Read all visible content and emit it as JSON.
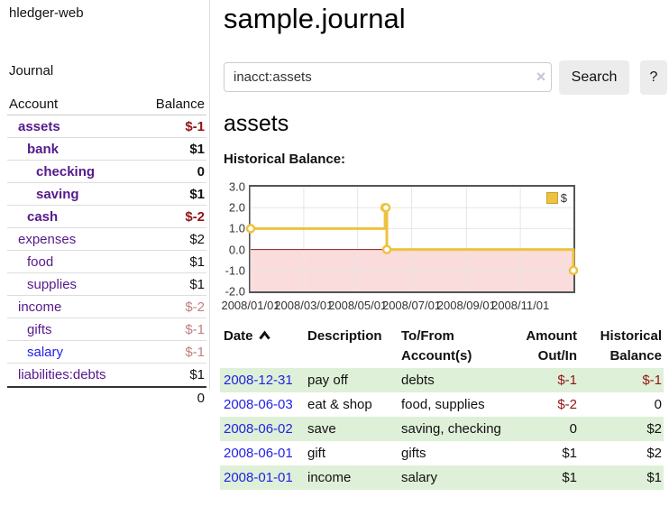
{
  "app": {
    "brand": "hledger-web"
  },
  "colors": {
    "accent_purple": "#551a8b",
    "link_blue": "#2222e6",
    "negative_strong": "#941414",
    "negative_soft": "#c47e7e",
    "row_stripe_green": "#dff0d8",
    "chart_gold": "#edc240",
    "chart_gold_border": "#c9a22e",
    "chart_negative_fill": "#fbdcdc",
    "chart_zero_line": "#8b1a1a",
    "chart_grid": "#e6e6e6"
  },
  "sidebar": {
    "journal_link": "Journal",
    "accounts_table": {
      "headers": {
        "account": "Account",
        "balance": "Balance"
      },
      "rows": [
        {
          "account": "assets",
          "balance": "$-1",
          "level": 1,
          "bold": true,
          "negative": "strong"
        },
        {
          "account": "bank",
          "balance": "$1",
          "level": 2,
          "bold": true,
          "negative": "none"
        },
        {
          "account": "checking",
          "balance": "0",
          "level": 3,
          "bold": true,
          "negative": "none"
        },
        {
          "account": "saving",
          "balance": "$1",
          "level": 3,
          "bold": true,
          "negative": "none"
        },
        {
          "account": "cash",
          "balance": "$-2",
          "level": 2,
          "bold": true,
          "negative": "strong"
        },
        {
          "account": "expenses",
          "balance": "$2",
          "level": 1,
          "bold": false,
          "negative": "none"
        },
        {
          "account": "food",
          "balance": "$1",
          "level": 2,
          "bold": false,
          "negative": "none"
        },
        {
          "account": "supplies",
          "balance": "$1",
          "level": 2,
          "bold": false,
          "negative": "none"
        },
        {
          "account": "income",
          "balance": "$-2",
          "level": 1,
          "bold": false,
          "negative": "soft"
        },
        {
          "account": "gifts",
          "balance": "$-1",
          "level": 2,
          "bold": false,
          "negative": "soft"
        },
        {
          "account": "salary",
          "balance": "$-1",
          "level": 2,
          "bold": false,
          "negative": "soft",
          "link_color": "blue"
        },
        {
          "account": "liabilities:debts",
          "balance": "$1",
          "level": 1,
          "bold": false,
          "negative": "none"
        }
      ],
      "total": "0"
    }
  },
  "header": {
    "title": "sample.journal"
  },
  "search": {
    "value": "inacct:assets",
    "clear_icon": "×",
    "button": "Search",
    "help_button": "?"
  },
  "account_page": {
    "title": "assets",
    "chart_label": "Historical Balance:"
  },
  "chart_data": {
    "type": "line",
    "title": "Historical Balance:",
    "step": true,
    "series": [
      {
        "name": "$",
        "points": [
          [
            "2008-01-01",
            1
          ],
          [
            "2008-06-01",
            2
          ],
          [
            "2008-06-02",
            2
          ],
          [
            "2008-06-03",
            0
          ],
          [
            "2008-12-31",
            -1
          ]
        ]
      }
    ],
    "xlim": [
      "2008-01-01",
      "2008-12-31"
    ],
    "ylim": [
      -2,
      3
    ],
    "yticks": [
      "3.0",
      "2.0",
      "1.0",
      "0.0",
      "-1.0",
      "-2.0"
    ],
    "xticks": [
      "2008/01/01",
      "2008/03/01",
      "2008/05/01",
      "2008/07/01",
      "2008/09/01",
      "2008/11/01"
    ],
    "grid": true,
    "legend_position": "top-right",
    "negative_region_shaded": true
  },
  "register": {
    "headers": {
      "date": "Date",
      "description": "Description",
      "accounts": "To/From Account(s)",
      "amount": "Amount Out/In",
      "balance": "Historical Balance"
    },
    "rows": [
      {
        "date": "2008-12-31",
        "description": "pay off",
        "accounts": "debts",
        "amount": "$-1",
        "balance": "$-1"
      },
      {
        "date": "2008-06-03",
        "description": "eat & shop",
        "accounts": "food, supplies",
        "amount": "$-2",
        "balance": "0"
      },
      {
        "date": "2008-06-02",
        "description": "save",
        "accounts": "saving, checking",
        "amount": "0",
        "balance": "$2"
      },
      {
        "date": "2008-06-01",
        "description": "gift",
        "accounts": "gifts",
        "amount": "$1",
        "balance": "$2"
      },
      {
        "date": "2008-01-01",
        "description": "income",
        "accounts": "salary",
        "amount": "$1",
        "balance": "$1"
      }
    ]
  }
}
